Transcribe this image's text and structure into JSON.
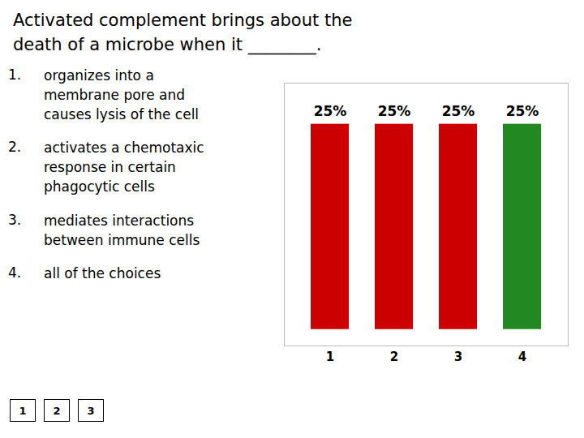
{
  "chart_data": {
    "type": "bar",
    "title": "Activated complement brings about the\ndeath of a microbe when it ________.",
    "categories": [
      "1",
      "2",
      "3",
      "4"
    ],
    "values": [
      25,
      25,
      25,
      25
    ],
    "value_labels": [
      "25%",
      "25%",
      "25%",
      "25%"
    ],
    "data_labels": true,
    "colors": [
      "#cc0000",
      "#cc0000",
      "#cc0000",
      "#228822"
    ],
    "ylim": [
      -2,
      30
    ],
    "yticks": [],
    "tick_labels": "x",
    "grid": false,
    "annotations": [
      [
        "1.",
        "organizes into a",
        "membrane pore and",
        "causes lysis of the cell"
      ],
      [
        "2.",
        "activates a chemotaxic",
        "response in certain",
        "phagocytic cells"
      ],
      [
        "3.",
        "mediates interactions",
        "between immune cells"
      ],
      [
        "4.",
        "all of the choices"
      ],
      [
        "1"
      ],
      [
        "2"
      ],
      [
        "3"
      ]
    ]
  }
}
